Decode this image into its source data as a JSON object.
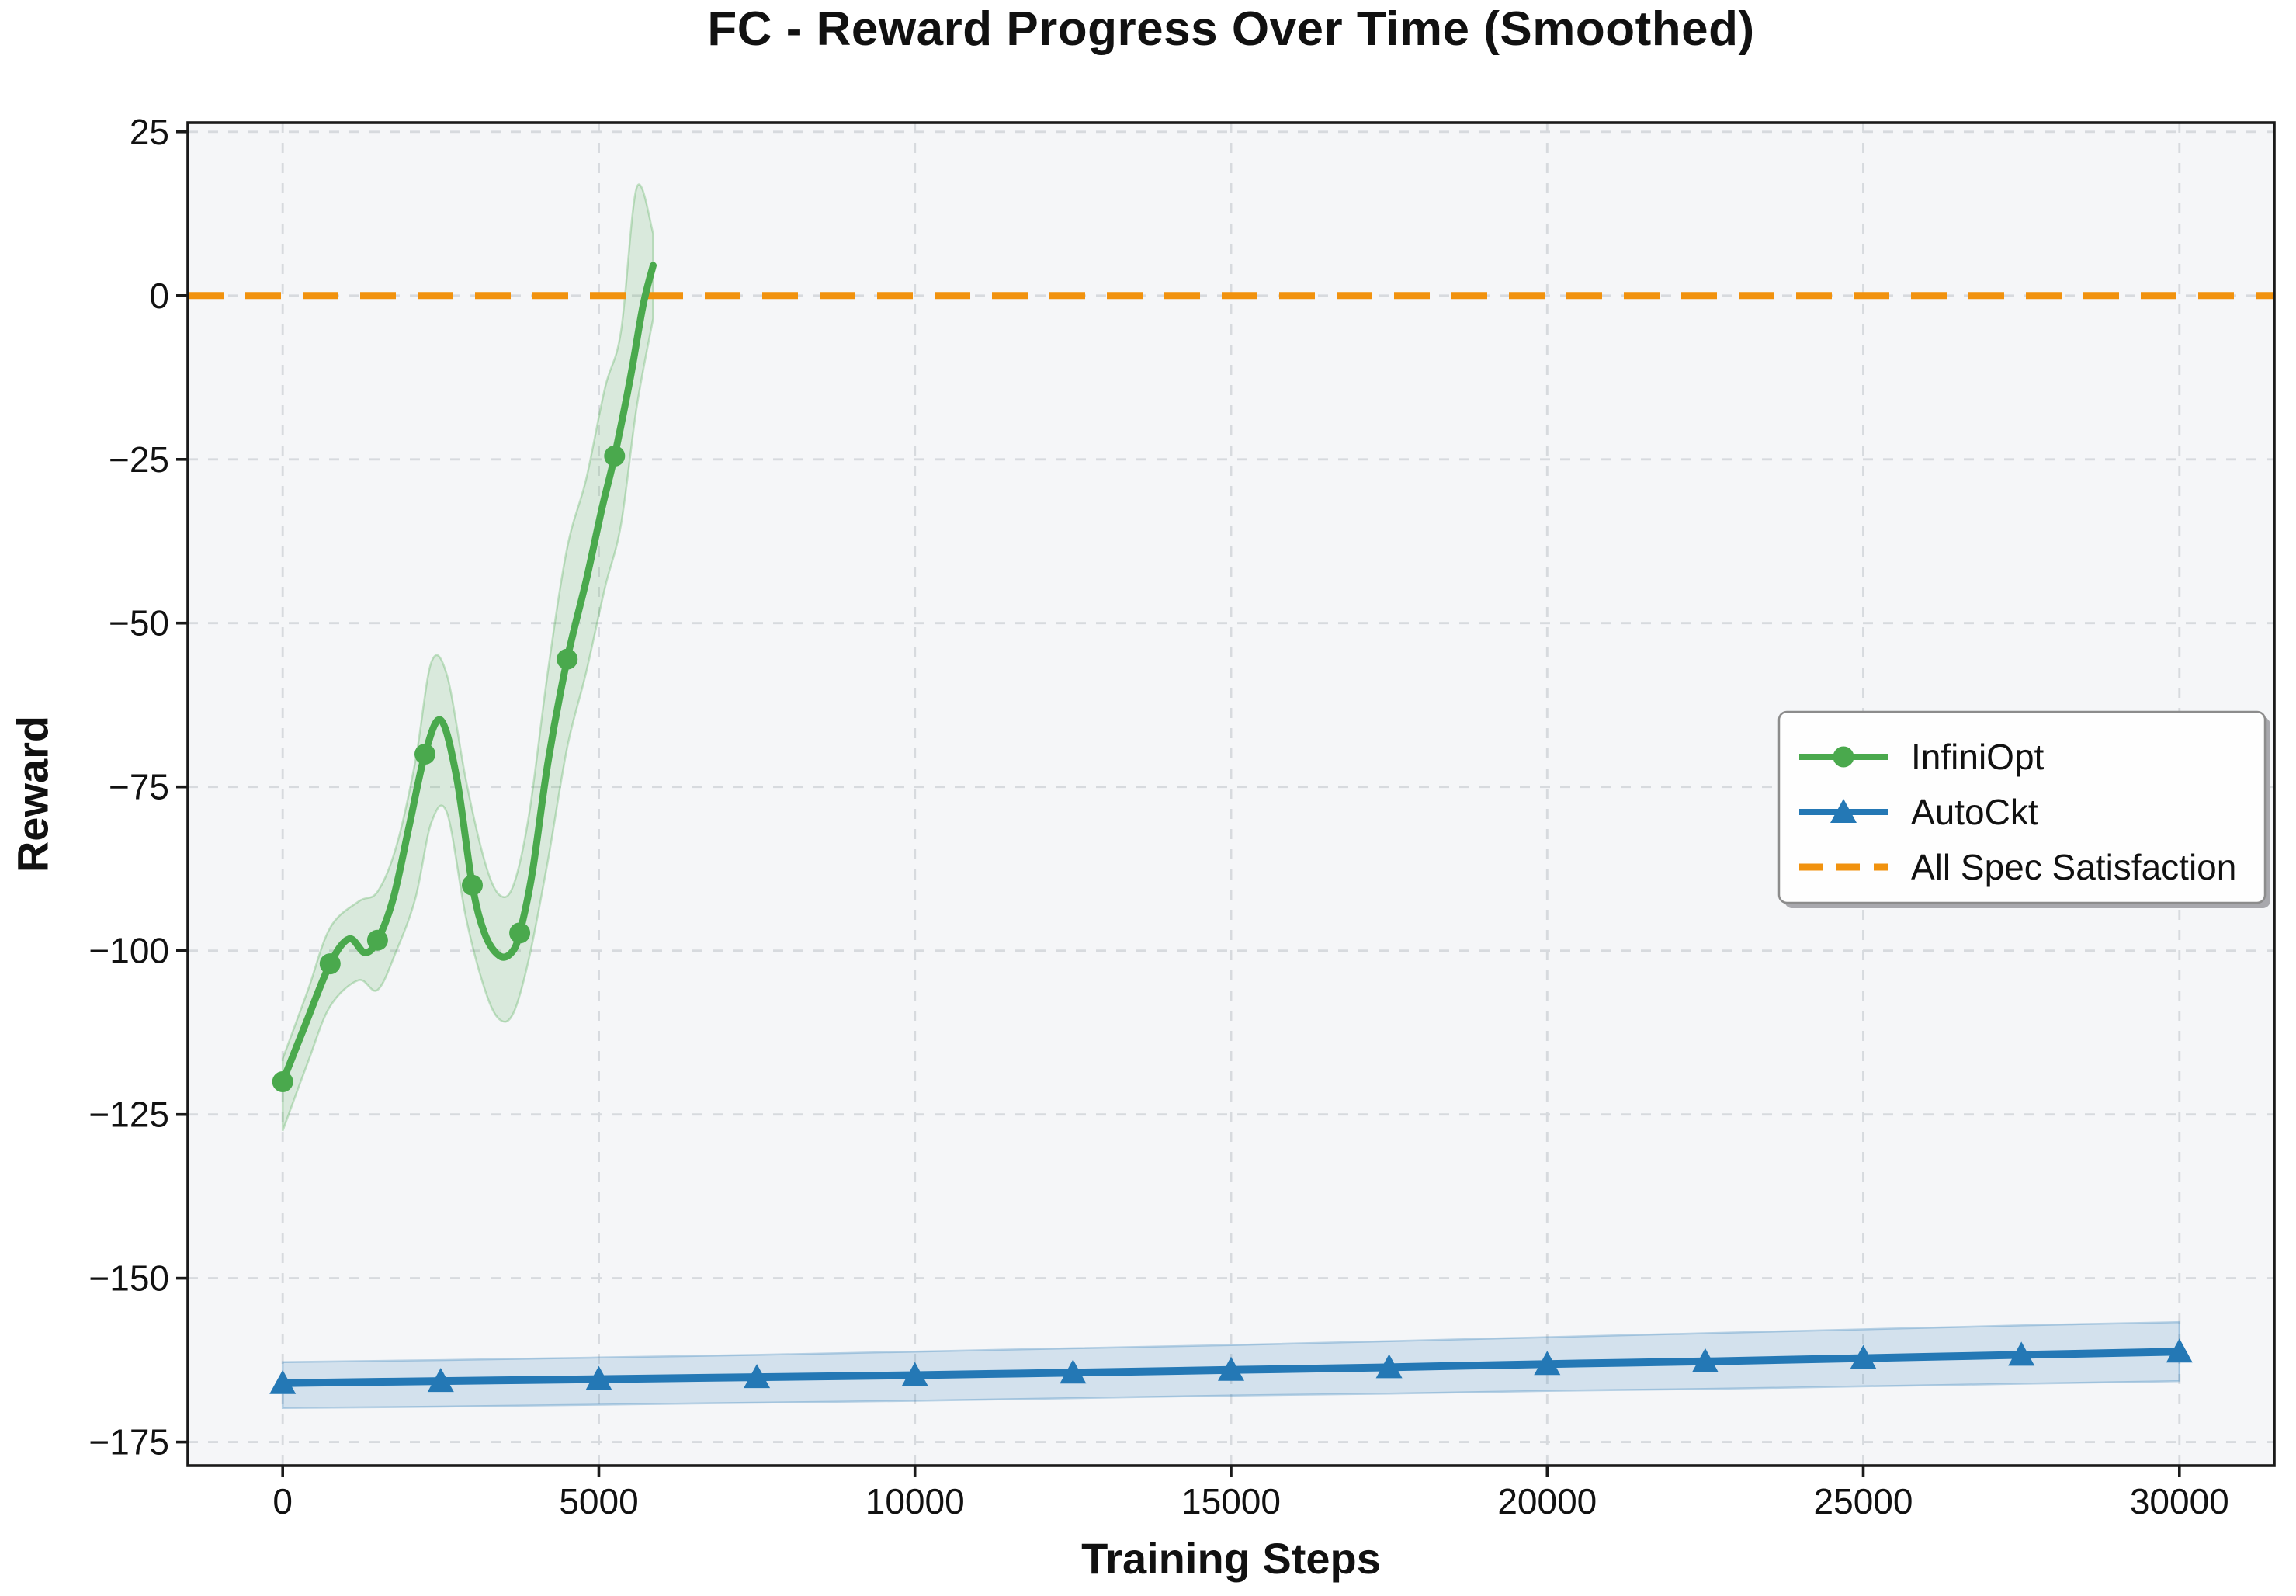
{
  "chart_data": {
    "type": "line",
    "title": "FC - Reward Progress Over Time (Smoothed)",
    "xlabel": "Training Steps",
    "ylabel": "Reward",
    "xlim": [
      -1500,
      31500
    ],
    "ylim": [
      -178.6,
      26.4
    ],
    "xticks": [
      0,
      5000,
      10000,
      15000,
      20000,
      25000,
      30000
    ],
    "yticks": [
      25,
      0,
      -25,
      -50,
      -75,
      -100,
      -125,
      -150,
      -175
    ],
    "grid": true,
    "legend_position": "center right",
    "colors": {
      "green": "#4aa94d",
      "blue": "#2478b5",
      "orange": "#f1920e",
      "plot_bg": "#f5f6f8",
      "grid": "#d7dade",
      "spine": "#1a1a1a",
      "text": "#111111",
      "legend_bg": "#fefefe",
      "legend_border": "#8c8c8c",
      "legend_shadow": "#a8a8ad"
    },
    "series": [
      {
        "id": "infiniopt",
        "name": "InfiniOpt",
        "color": "#4aa94d",
        "marker": "circle",
        "linewidth": 9,
        "markers": {
          "x": [
            0,
            750,
            1500,
            2250,
            3000,
            3750,
            4500,
            5250
          ],
          "y": [
            -120,
            -102,
            -98.4,
            -70,
            -90,
            -97.3,
            -55.5,
            -24.5
          ]
        },
        "line": [
          [
            0,
            -120
          ],
          [
            350,
            -111.5
          ],
          [
            750,
            -102
          ],
          [
            1050,
            -98.2
          ],
          [
            1300,
            -100.3
          ],
          [
            1500,
            -98.4
          ],
          [
            1750,
            -92
          ],
          [
            2000,
            -81
          ],
          [
            2250,
            -70
          ],
          [
            2500,
            -64.8
          ],
          [
            2750,
            -73.5
          ],
          [
            3000,
            -90
          ],
          [
            3200,
            -97.5
          ],
          [
            3430,
            -100.8
          ],
          [
            3620,
            -100.3
          ],
          [
            3750,
            -97.3
          ],
          [
            3950,
            -88
          ],
          [
            4200,
            -71
          ],
          [
            4500,
            -55.5
          ],
          [
            4800,
            -43.5
          ],
          [
            5050,
            -32.5
          ],
          [
            5250,
            -24.5
          ],
          [
            5500,
            -12.5
          ],
          [
            5700,
            -1.5
          ],
          [
            5860,
            4.6
          ]
        ],
        "band": {
          "x": [
            0,
            400,
            750,
            1200,
            1500,
            1800,
            2100,
            2350,
            2600,
            2900,
            3200,
            3430,
            3650,
            3900,
            4200,
            4500,
            4800,
            5100,
            5350,
            5600,
            5860
          ],
          "upper": [
            -116.5,
            -106,
            -96.5,
            -92.5,
            -91,
            -84,
            -71,
            -56,
            -58,
            -74,
            -86.5,
            -91.5,
            -90,
            -79,
            -57,
            -38.5,
            -28,
            -14,
            -5.5,
            16.5,
            9.5
          ],
          "lower": [
            -127.5,
            -117,
            -108.5,
            -104.5,
            -106,
            -100,
            -92,
            -80.5,
            -79,
            -95,
            -106,
            -110.5,
            -109.5,
            -101,
            -86,
            -69,
            -57.5,
            -44.5,
            -35,
            -17,
            -3.5
          ]
        }
      },
      {
        "id": "autockt",
        "name": "AutoCkt",
        "color": "#2478b5",
        "marker": "triangle",
        "linewidth": 10,
        "markers": {
          "x": [
            0,
            2500,
            5000,
            7500,
            10000,
            12500,
            15000,
            17500,
            20000,
            22500,
            25000,
            27500,
            30000
          ],
          "y": [
            -166.0,
            -165.7,
            -165.4,
            -165.1,
            -164.8,
            -164.4,
            -164.0,
            -163.6,
            -163.1,
            -162.7,
            -162.2,
            -161.7,
            -161.2
          ]
        },
        "line": [
          [
            0,
            -166.0
          ],
          [
            2500,
            -165.7
          ],
          [
            5000,
            -165.4
          ],
          [
            7500,
            -165.1
          ],
          [
            10000,
            -164.8
          ],
          [
            12500,
            -164.4
          ],
          [
            15000,
            -164.0
          ],
          [
            17500,
            -163.6
          ],
          [
            20000,
            -163.1
          ],
          [
            22500,
            -162.7
          ],
          [
            25000,
            -162.2
          ],
          [
            27500,
            -161.7
          ],
          [
            30000,
            -161.2
          ]
        ],
        "band": {
          "x": [
            0,
            2500,
            5000,
            7500,
            10000,
            12500,
            15000,
            17500,
            20000,
            22500,
            25000,
            27500,
            30000
          ],
          "upper": [
            -162.8,
            -162.5,
            -162.1,
            -161.7,
            -161.2,
            -160.7,
            -160.2,
            -159.6,
            -159.0,
            -158.4,
            -157.8,
            -157.2,
            -156.7
          ],
          "lower": [
            -169.8,
            -169.6,
            -169.3,
            -169.0,
            -168.7,
            -168.3,
            -167.9,
            -167.6,
            -167.2,
            -166.9,
            -166.5,
            -166.1,
            -165.7
          ]
        }
      }
    ],
    "threshold": {
      "id": "all-spec-satisfaction",
      "name": "All Spec Satisfaction",
      "y": 0,
      "color": "#f1920e",
      "style": "dashed"
    }
  }
}
